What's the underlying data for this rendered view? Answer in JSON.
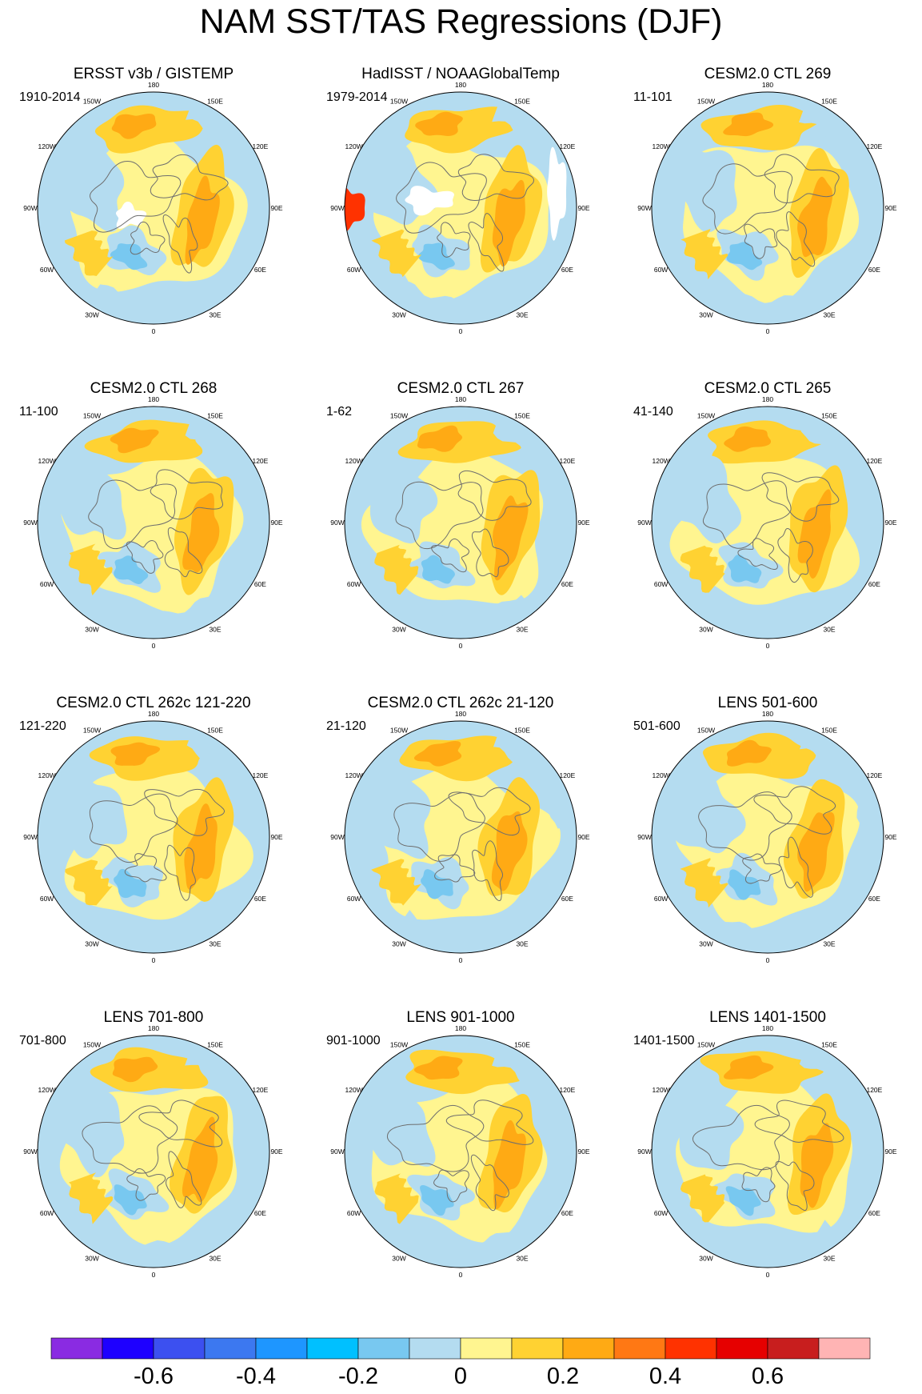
{
  "title": "NAM SST/TAS Regressions (DJF)",
  "longitude_labels": [
    "180",
    "150E",
    "120E",
    "90E",
    "60E",
    "30E",
    "0",
    "30W",
    "60W",
    "90W",
    "120W",
    "150W"
  ],
  "panels": [
    {
      "title": "ERSST v3b / GISTEMP",
      "period": "1910-2014",
      "pattern": "obs_ersst"
    },
    {
      "title": "HadISST / NOAAGlobalTemp",
      "period": "1979-2014",
      "pattern": "obs_hadisst"
    },
    {
      "title": "CESM2.0 CTL 269",
      "period": "11-101",
      "pattern": "model"
    },
    {
      "title": "CESM2.0 CTL 268",
      "period": "11-100",
      "pattern": "model"
    },
    {
      "title": "CESM2.0 CTL 267",
      "period": "1-62",
      "pattern": "model"
    },
    {
      "title": "CESM2.0 CTL 265",
      "period": "41-140",
      "pattern": "model"
    },
    {
      "title": "CESM2.0 CTL 262c 121-220",
      "period": "121-220",
      "pattern": "model"
    },
    {
      "title": "CESM2.0 CTL 262c 21-120",
      "period": "21-120",
      "pattern": "model"
    },
    {
      "title": "LENS 501-600",
      "period": "501-600",
      "pattern": "model"
    },
    {
      "title": "LENS 701-800",
      "period": "701-800",
      "pattern": "model"
    },
    {
      "title": "LENS 901-1000",
      "period": "901-1000",
      "pattern": "model"
    },
    {
      "title": "LENS 1401-1500",
      "period": "1401-1500",
      "pattern": "model"
    }
  ],
  "colorbar": {
    "colors": [
      "#8a2be2",
      "#1e00ff",
      "#3c50f0",
      "#3c78f0",
      "#1e96ff",
      "#00c0ff",
      "#78c8f0",
      "#b4dcf0",
      "#fff590",
      "#ffd232",
      "#ffaa14",
      "#ff7814",
      "#ff3200",
      "#e60000",
      "#c81e1e",
      "#ffb4b4"
    ],
    "tick_labels": [
      {
        "text": "-0.6",
        "index": 2
      },
      {
        "text": "-0.4",
        "index": 4
      },
      {
        "text": "-0.2",
        "index": 6
      },
      {
        "text": "0",
        "index": 8
      },
      {
        "text": "0.2",
        "index": 10
      },
      {
        "text": "0.4",
        "index": 12
      },
      {
        "text": "0.6",
        "index": 14
      }
    ]
  }
}
